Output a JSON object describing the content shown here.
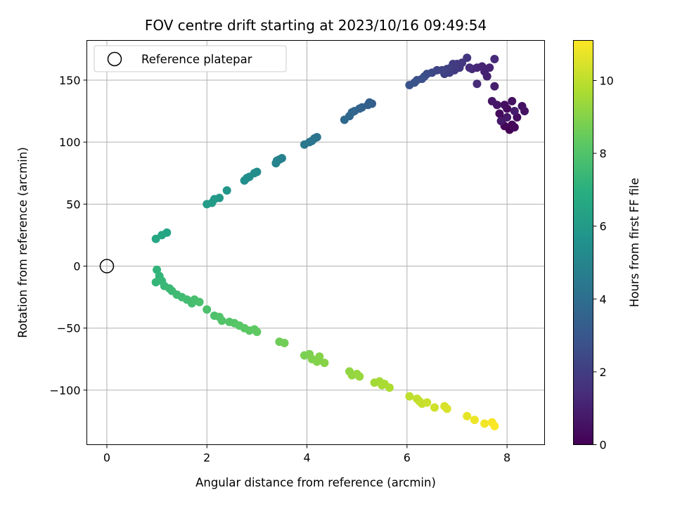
{
  "chart_data": {
    "type": "scatter",
    "title": "FOV centre drift starting at 2023/10/16 09:49:54",
    "xlabel": "Angular distance from reference (arcmin)",
    "ylabel": "Rotation from reference (arcmin)",
    "colorbar_label": "Hours from first FF file",
    "xlim": [
      -0.4,
      8.75
    ],
    "ylim": [
      -144,
      182
    ],
    "clim": [
      0,
      11.1
    ],
    "xticks": [
      0,
      2,
      4,
      6,
      8
    ],
    "yticks": [
      -100,
      -50,
      0,
      50,
      100,
      150
    ],
    "cticks": [
      0,
      2,
      4,
      6,
      8,
      10
    ],
    "grid": true,
    "legend_position": "upper-left",
    "colormap": "viridis",
    "reference": {
      "label": "Reference platepar",
      "x": 0,
      "y": 0
    },
    "points": [
      [
        8.05,
        110,
        0.0
      ],
      [
        8.1,
        114,
        0.1
      ],
      [
        7.95,
        113,
        0.15
      ],
      [
        7.9,
        118,
        0.2
      ],
      [
        8.15,
        112,
        0.25
      ],
      [
        7.85,
        123,
        0.3
      ],
      [
        8.0,
        127,
        0.35
      ],
      [
        8.2,
        120,
        0.4
      ],
      [
        7.95,
        130,
        0.45
      ],
      [
        8.1,
        133,
        0.5
      ],
      [
        8.3,
        129,
        0.55
      ],
      [
        8.35,
        125,
        0.6
      ],
      [
        7.8,
        130,
        0.65
      ],
      [
        7.7,
        133,
        0.7
      ],
      [
        8.0,
        120,
        0.75
      ],
      [
        7.88,
        117,
        0.8
      ],
      [
        8.15,
        125,
        0.85
      ],
      [
        7.75,
        145,
        0.9
      ],
      [
        7.6,
        153,
        1.0
      ],
      [
        7.55,
        157,
        1.05
      ],
      [
        7.65,
        160,
        1.1
      ],
      [
        7.5,
        161,
        1.15
      ],
      [
        7.4,
        160,
        1.2
      ],
      [
        7.3,
        159,
        1.25
      ],
      [
        7.75,
        167,
        1.3
      ],
      [
        7.4,
        147,
        1.35
      ],
      [
        7.25,
        160,
        1.4
      ],
      [
        7.2,
        168,
        1.7
      ],
      [
        7.1,
        164,
        1.75
      ],
      [
        7.05,
        160,
        1.8
      ],
      [
        7.0,
        163,
        1.85
      ],
      [
        6.95,
        158,
        1.9
      ],
      [
        6.92,
        163,
        1.95
      ],
      [
        6.88,
        160,
        2.0
      ],
      [
        6.85,
        156,
        2.05
      ],
      [
        6.8,
        159,
        2.1
      ],
      [
        6.75,
        155,
        2.15
      ],
      [
        6.7,
        158,
        2.2
      ],
      [
        6.6,
        158,
        2.3
      ],
      [
        6.5,
        156,
        2.4
      ],
      [
        6.4,
        155,
        2.5
      ],
      [
        6.35,
        153,
        2.6
      ],
      [
        6.3,
        151,
        2.7
      ],
      [
        6.2,
        150,
        2.75
      ],
      [
        6.15,
        148,
        2.8
      ],
      [
        6.05,
        146,
        2.85
      ],
      [
        5.3,
        131,
        3.3
      ],
      [
        5.25,
        132,
        3.35
      ],
      [
        5.22,
        130,
        3.4
      ],
      [
        5.1,
        128,
        3.5
      ],
      [
        5.05,
        127,
        3.55
      ],
      [
        4.95,
        125,
        3.6
      ],
      [
        4.9,
        124,
        3.65
      ],
      [
        4.85,
        121,
        3.7
      ],
      [
        4.75,
        118,
        3.75
      ],
      [
        4.2,
        104,
        4.2
      ],
      [
        4.15,
        103,
        4.25
      ],
      [
        4.1,
        101,
        4.3
      ],
      [
        4.05,
        100,
        4.35
      ],
      [
        3.95,
        98,
        4.4
      ],
      [
        3.5,
        87,
        4.8
      ],
      [
        3.45,
        86,
        4.85
      ],
      [
        3.4,
        85,
        4.9
      ],
      [
        3.38,
        83,
        4.95
      ],
      [
        3.0,
        76,
        5.3
      ],
      [
        2.95,
        75,
        5.35
      ],
      [
        2.85,
        72,
        5.4
      ],
      [
        2.8,
        71,
        5.45
      ],
      [
        2.75,
        69,
        5.5
      ],
      [
        2.4,
        61,
        5.8
      ],
      [
        2.25,
        55,
        5.9
      ],
      [
        2.15,
        54,
        5.95
      ],
      [
        2.1,
        51,
        6.0
      ],
      [
        2.0,
        50,
        6.1
      ],
      [
        1.2,
        27,
        6.5
      ],
      [
        1.1,
        25,
        6.55
      ],
      [
        0.98,
        22,
        6.6
      ],
      [
        1.0,
        -3,
        7.2
      ],
      [
        1.05,
        -8,
        7.25
      ],
      [
        0.98,
        -13,
        7.3
      ],
      [
        1.1,
        -12,
        7.35
      ],
      [
        1.15,
        -16,
        7.4
      ],
      [
        1.25,
        -18,
        7.45
      ],
      [
        1.3,
        -20,
        7.5
      ],
      [
        1.4,
        -23,
        7.55
      ],
      [
        1.5,
        -25,
        7.6
      ],
      [
        1.6,
        -27,
        7.65
      ],
      [
        1.7,
        -30,
        7.7
      ],
      [
        1.75,
        -27,
        7.75
      ],
      [
        1.85,
        -29,
        7.8
      ],
      [
        2.0,
        -35,
        7.85
      ],
      [
        2.15,
        -40,
        7.9
      ],
      [
        2.25,
        -41,
        7.95
      ],
      [
        2.3,
        -44,
        8.0
      ],
      [
        2.45,
        -45,
        8.05
      ],
      [
        2.55,
        -46,
        8.1
      ],
      [
        2.65,
        -48,
        8.15
      ],
      [
        2.75,
        -50,
        8.2
      ],
      [
        2.85,
        -52,
        8.25
      ],
      [
        2.95,
        -51,
        8.3
      ],
      [
        3.0,
        -53,
        8.35
      ],
      [
        3.45,
        -61,
        8.6
      ],
      [
        3.55,
        -62,
        8.65
      ],
      [
        3.95,
        -72,
        8.8
      ],
      [
        4.05,
        -71,
        8.85
      ],
      [
        4.1,
        -75,
        8.9
      ],
      [
        4.2,
        -77,
        8.95
      ],
      [
        4.25,
        -73,
        9.0
      ],
      [
        4.35,
        -78,
        9.05
      ],
      [
        4.85,
        -85,
        9.2
      ],
      [
        4.9,
        -88,
        9.25
      ],
      [
        5.0,
        -87,
        9.3
      ],
      [
        5.05,
        -89,
        9.35
      ],
      [
        5.35,
        -94,
        9.5
      ],
      [
        5.45,
        -93,
        9.55
      ],
      [
        5.5,
        -96,
        9.6
      ],
      [
        5.55,
        -95,
        9.65
      ],
      [
        5.65,
        -98,
        9.7
      ],
      [
        6.05,
        -105,
        10.0
      ],
      [
        6.2,
        -107,
        10.05
      ],
      [
        6.25,
        -109,
        10.1
      ],
      [
        6.3,
        -111,
        10.15
      ],
      [
        6.4,
        -110,
        10.2
      ],
      [
        6.55,
        -114,
        10.3
      ],
      [
        6.75,
        -113,
        10.4
      ],
      [
        6.8,
        -115,
        10.45
      ],
      [
        7.2,
        -121,
        10.7
      ],
      [
        7.35,
        -124,
        10.8
      ],
      [
        7.55,
        -127,
        10.9
      ],
      [
        7.7,
        -126,
        11.0
      ],
      [
        7.75,
        -129,
        11.05
      ]
    ]
  }
}
